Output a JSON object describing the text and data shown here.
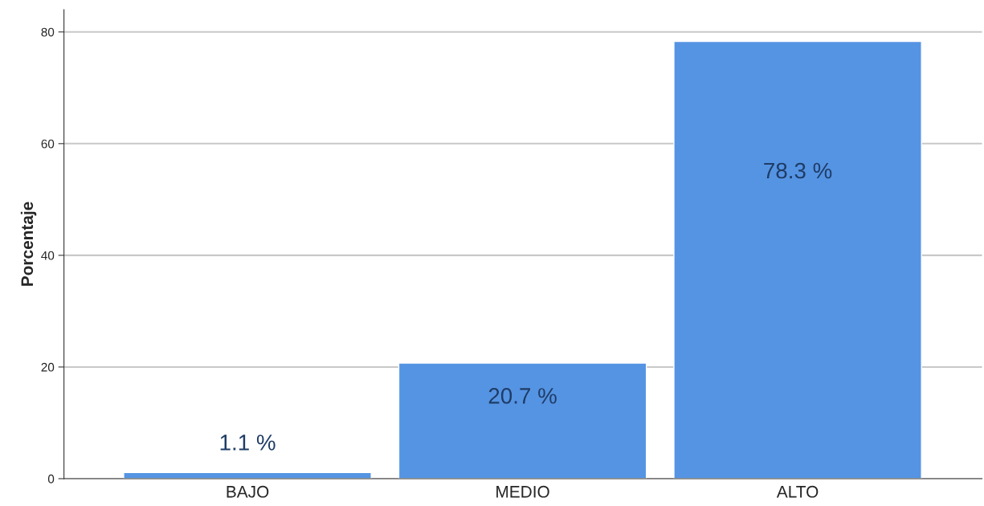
{
  "chart_data": {
    "type": "bar",
    "ylabel": "Porcentaje",
    "categories": [
      "BAJO",
      "MEDIO",
      "ALTO"
    ],
    "values": [
      1.1,
      20.7,
      78.3
    ],
    "value_labels": [
      "1.1 %",
      "20.7 %",
      "78.3 %"
    ],
    "color": "#5594e3",
    "ylim": [
      0,
      84
    ],
    "yticks": [
      0,
      20,
      40,
      60,
      80
    ],
    "grid": "y",
    "legend": false
  }
}
